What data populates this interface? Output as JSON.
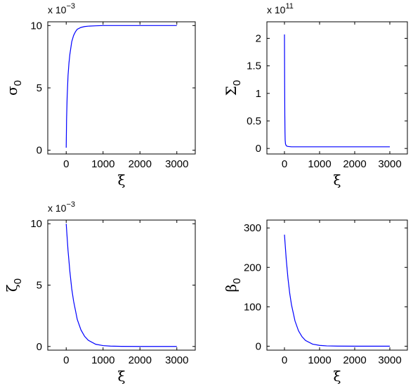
{
  "chart_data": [
    {
      "type": "line",
      "xlabel": "ξ",
      "ylabel": "σ",
      "ylabel_sub": "0",
      "multiplier": "x 10",
      "multiplier_exp": "−3",
      "xlim": [
        -500,
        3500
      ],
      "ylim": [
        -0.3,
        10.3
      ],
      "xticks": [
        0,
        1000,
        2000,
        3000
      ],
      "xtick_labels": [
        "0",
        "1000",
        "2000",
        "3000"
      ],
      "yticks": [
        0,
        5,
        10
      ],
      "ytick_labels": [
        "0",
        "5",
        "10"
      ],
      "grid": false,
      "series": [
        {
          "color": "#0000ff",
          "x": [
            0,
            10,
            25,
            50,
            75,
            100,
            150,
            200,
            250,
            300,
            400,
            500,
            600,
            800,
            1000,
            1500,
            2000,
            2500,
            3000
          ],
          "y": [
            0.2,
            2.5,
            4.2,
            6.0,
            7.0,
            7.7,
            8.7,
            9.2,
            9.5,
            9.7,
            9.85,
            9.92,
            9.95,
            9.98,
            10,
            10,
            10,
            10,
            10
          ]
        }
      ]
    },
    {
      "type": "line",
      "xlabel": "ξ",
      "ylabel": "Σ",
      "ylabel_sub": "0",
      "multiplier": "x 10",
      "multiplier_exp": "11",
      "xlim": [
        -500,
        3500
      ],
      "ylim": [
        -0.1,
        2.3
      ],
      "xticks": [
        0,
        1000,
        2000,
        3000
      ],
      "xtick_labels": [
        "0",
        "1000",
        "2000",
        "3000"
      ],
      "yticks": [
        0,
        0.5,
        1,
        1.5,
        2
      ],
      "ytick_labels": [
        "0",
        "0.5",
        "1",
        "1.5",
        "2"
      ],
      "grid": false,
      "series": [
        {
          "color": "#0000ff",
          "x": [
            0,
            5,
            10,
            15,
            20,
            30,
            50,
            80,
            120,
            200,
            500,
            1000,
            2000,
            3000
          ],
          "y": [
            2.07,
            1.2,
            0.6,
            0.3,
            0.15,
            0.08,
            0.05,
            0.04,
            0.035,
            0.03,
            0.03,
            0.03,
            0.03,
            0.03
          ]
        }
      ]
    },
    {
      "type": "line",
      "xlabel": "ξ",
      "ylabel": "ζ",
      "ylabel_sub": "0",
      "multiplier": "x 10",
      "multiplier_exp": "−3",
      "xlim": [
        -500,
        3500
      ],
      "ylim": [
        -0.3,
        10.3
      ],
      "xticks": [
        0,
        1000,
        2000,
        3000
      ],
      "xtick_labels": [
        "0",
        "1000",
        "2000",
        "3000"
      ],
      "yticks": [
        0,
        5,
        10
      ],
      "ytick_labels": [
        "0",
        "5",
        "10"
      ],
      "grid": false,
      "series": [
        {
          "color": "#0000ff",
          "x": [
            0,
            50,
            100,
            150,
            200,
            300,
            400,
            500,
            600,
            800,
            1000,
            1200,
            1500,
            2000,
            2500,
            3000
          ],
          "y": [
            10,
            7.8,
            6.1,
            4.7,
            3.7,
            2.2,
            1.35,
            0.82,
            0.5,
            0.18,
            0.07,
            0.03,
            0.01,
            0,
            0,
            0
          ]
        }
      ]
    },
    {
      "type": "line",
      "xlabel": "ξ",
      "ylabel": "β",
      "ylabel_sub": "0",
      "multiplier": "",
      "multiplier_exp": "",
      "xlim": [
        -500,
        3500
      ],
      "ylim": [
        -10,
        320
      ],
      "xticks": [
        0,
        1000,
        2000,
        3000
      ],
      "xtick_labels": [
        "0",
        "1000",
        "2000",
        "3000"
      ],
      "yticks": [
        0,
        100,
        200,
        300
      ],
      "ytick_labels": [
        "0",
        "100",
        "200",
        "300"
      ],
      "grid": false,
      "series": [
        {
          "color": "#0000ff",
          "x": [
            0,
            50,
            100,
            150,
            200,
            300,
            400,
            500,
            600,
            800,
            1000,
            1200,
            1500,
            2000,
            2500,
            3000
          ],
          "y": [
            283,
            221,
            172,
            134,
            105,
            64,
            39,
            24,
            14.5,
            5.3,
            2,
            0.8,
            0.2,
            0,
            0,
            0
          ]
        }
      ]
    }
  ]
}
